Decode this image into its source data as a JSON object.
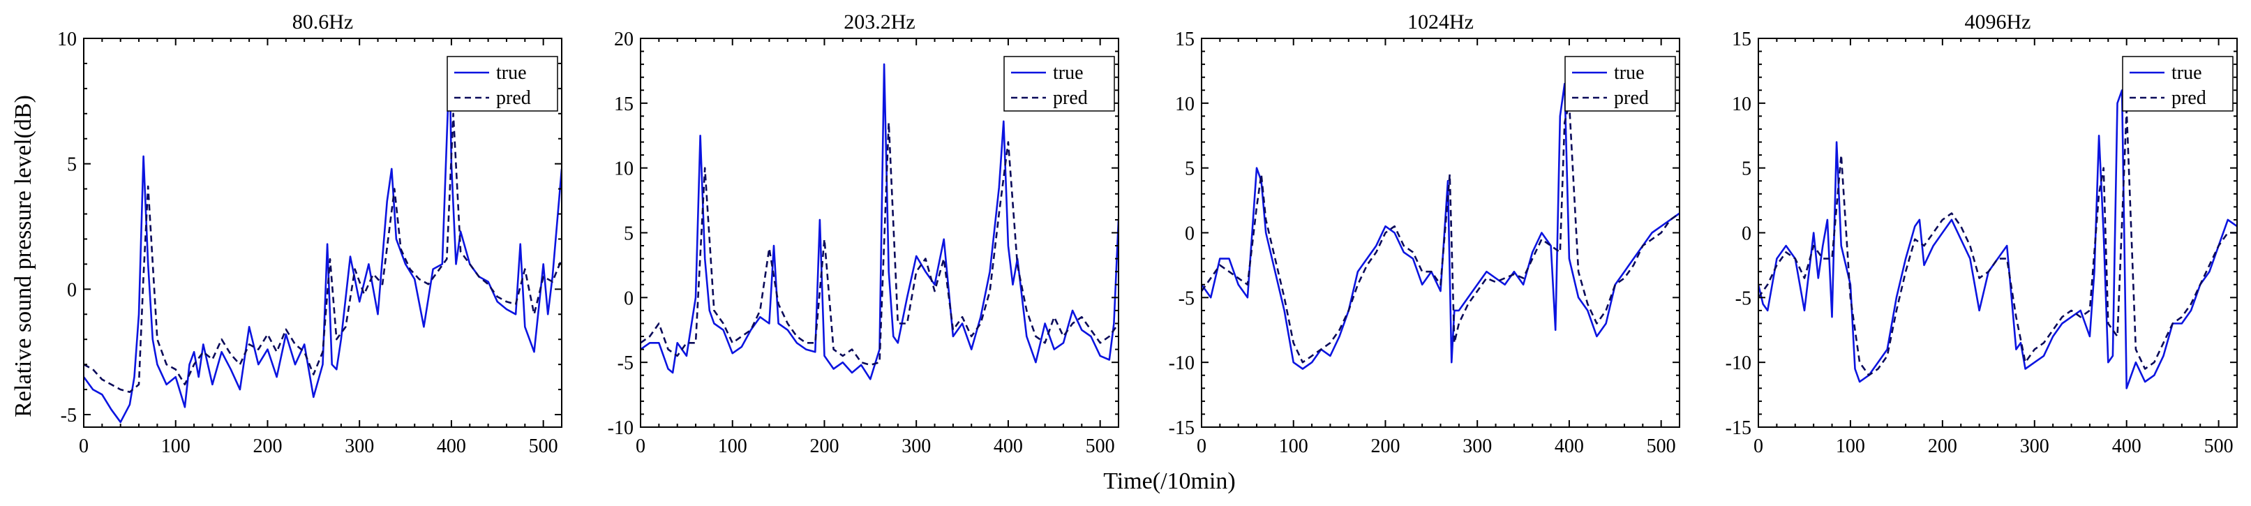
{
  "colors": {
    "true": "#0b14e0",
    "pred": "#0a0a5a",
    "frame": "#000000"
  },
  "shared": {
    "xlabel": "Time(/10min)",
    "ylabel": "Relative sound pressure level(dB)",
    "legend": [
      "true",
      "pred"
    ],
    "xlim": [
      0,
      520
    ],
    "xticks": [
      0,
      100,
      200,
      300,
      400,
      500
    ]
  },
  "chart_data": [
    {
      "type": "line",
      "title": "80.6Hz",
      "xlim": [
        0,
        520
      ],
      "ylim": [
        -5.5,
        10
      ],
      "yticks": [
        -5,
        0,
        5,
        10
      ],
      "legend_position": "top-right",
      "series": [
        {
          "name": "true",
          "x": [
            0,
            10,
            20,
            30,
            40,
            50,
            55,
            60,
            65,
            70,
            75,
            80,
            90,
            100,
            110,
            115,
            120,
            125,
            130,
            140,
            150,
            160,
            170,
            180,
            190,
            200,
            210,
            220,
            230,
            240,
            250,
            260,
            265,
            270,
            275,
            280,
            290,
            300,
            310,
            320,
            330,
            335,
            340,
            350,
            360,
            370,
            380,
            390,
            395,
            398,
            400,
            405,
            410,
            420,
            430,
            440,
            450,
            460,
            470,
            475,
            480,
            490,
            500,
            505,
            510,
            520
          ],
          "y": [
            -3.5,
            -4.0,
            -4.2,
            -4.8,
            -5.3,
            -4.6,
            -3.5,
            -1.0,
            5.3,
            1.0,
            -2.0,
            -3.0,
            -3.8,
            -3.5,
            -4.7,
            -3.0,
            -2.5,
            -3.5,
            -2.2,
            -3.8,
            -2.5,
            -3.2,
            -4.0,
            -1.5,
            -3.0,
            -2.4,
            -3.5,
            -1.8,
            -3.0,
            -2.2,
            -4.3,
            -3.0,
            1.8,
            -3.0,
            -3.2,
            -2.0,
            1.3,
            -0.5,
            1.0,
            -1.0,
            3.5,
            4.8,
            2.0,
            1.0,
            0.4,
            -1.5,
            0.8,
            1.0,
            6.0,
            9.1,
            5.0,
            1.0,
            2.3,
            1.0,
            0.5,
            0.3,
            -0.5,
            -0.8,
            -1.0,
            1.8,
            -1.5,
            -2.5,
            1.0,
            -1.0,
            0.5,
            4.8
          ]
        },
        {
          "name": "pred",
          "x": [
            0,
            10,
            20,
            30,
            40,
            50,
            60,
            65,
            70,
            80,
            90,
            100,
            110,
            120,
            130,
            140,
            150,
            160,
            170,
            180,
            190,
            200,
            210,
            220,
            230,
            240,
            250,
            260,
            268,
            275,
            285,
            295,
            305,
            315,
            325,
            338,
            345,
            355,
            365,
            375,
            385,
            395,
            402,
            410,
            420,
            430,
            440,
            450,
            460,
            470,
            480,
            490,
            500,
            510,
            520
          ],
          "y": [
            -3.0,
            -3.2,
            -3.6,
            -3.8,
            -4.0,
            -4.1,
            -3.8,
            0.5,
            4.1,
            -2.0,
            -3.0,
            -3.2,
            -3.8,
            -3.0,
            -2.5,
            -2.8,
            -2.0,
            -2.6,
            -3.0,
            -2.2,
            -2.4,
            -1.8,
            -2.5,
            -1.6,
            -2.2,
            -2.5,
            -3.4,
            -2.5,
            1.2,
            -2.0,
            -1.5,
            0.8,
            -0.2,
            0.6,
            0.2,
            4.0,
            1.6,
            0.8,
            0.4,
            0.2,
            0.7,
            1.2,
            7.0,
            1.5,
            1.0,
            0.5,
            0.2,
            -0.3,
            -0.5,
            -0.6,
            0.8,
            -1.0,
            0.5,
            0.3,
            1.2
          ]
        }
      ]
    },
    {
      "type": "line",
      "title": "203.2Hz",
      "xlim": [
        0,
        520
      ],
      "ylim": [
        -10,
        20
      ],
      "yticks": [
        -10,
        -5,
        0,
        5,
        10,
        15,
        20
      ],
      "legend_position": "top-right",
      "series": [
        {
          "name": "true",
          "x": [
            0,
            10,
            20,
            30,
            35,
            40,
            50,
            60,
            65,
            70,
            75,
            80,
            90,
            100,
            110,
            120,
            130,
            140,
            145,
            150,
            160,
            170,
            180,
            190,
            195,
            200,
            210,
            220,
            230,
            240,
            250,
            260,
            265,
            270,
            275,
            280,
            290,
            300,
            310,
            320,
            330,
            340,
            350,
            360,
            370,
            380,
            390,
            395,
            400,
            405,
            410,
            420,
            430,
            440,
            450,
            460,
            470,
            480,
            490,
            500,
            510,
            515,
            520
          ],
          "y": [
            -4.0,
            -3.5,
            -3.5,
            -5.5,
            -5.8,
            -3.5,
            -4.5,
            0.0,
            12.5,
            3.0,
            -1.0,
            -2.0,
            -2.5,
            -4.3,
            -3.8,
            -2.5,
            -1.5,
            -2.0,
            4.0,
            -2.0,
            -2.5,
            -3.5,
            -4.0,
            -4.2,
            6.0,
            -4.5,
            -5.5,
            -5.0,
            -5.8,
            -5.2,
            -6.3,
            -4.0,
            18.0,
            2.0,
            -3.0,
            -3.5,
            0.0,
            3.2,
            2.0,
            1.0,
            4.5,
            -3.0,
            -2.0,
            -4.0,
            -1.5,
            2.0,
            8.5,
            13.6,
            4.0,
            1.0,
            3.0,
            -3.0,
            -5.0,
            -2.0,
            -4.0,
            -3.5,
            -1.0,
            -2.5,
            -3.0,
            -4.5,
            -4.8,
            -2.0,
            6.0
          ]
        },
        {
          "name": "pred",
          "x": [
            0,
            10,
            20,
            30,
            40,
            50,
            60,
            70,
            80,
            90,
            100,
            110,
            120,
            130,
            140,
            150,
            160,
            170,
            180,
            190,
            200,
            210,
            220,
            230,
            240,
            250,
            260,
            270,
            280,
            290,
            300,
            310,
            320,
            330,
            340,
            350,
            360,
            370,
            380,
            390,
            400,
            410,
            420,
            430,
            440,
            450,
            460,
            470,
            480,
            490,
            500,
            510,
            520
          ],
          "y": [
            -3.5,
            -3.0,
            -2.0,
            -4.0,
            -4.5,
            -3.5,
            -3.5,
            10.0,
            -1.0,
            -2.0,
            -3.5,
            -3.0,
            -2.5,
            -1.0,
            3.8,
            -0.5,
            -2.0,
            -3.0,
            -3.5,
            -3.5,
            4.5,
            -4.0,
            -4.5,
            -4.0,
            -5.0,
            -5.2,
            -5.0,
            13.5,
            -2.0,
            -2.0,
            2.0,
            3.0,
            0.5,
            3.0,
            -2.5,
            -1.5,
            -3.0,
            -2.0,
            0.5,
            6.5,
            12.0,
            2.5,
            -1.0,
            -3.0,
            -3.5,
            -1.5,
            -3.0,
            -2.0,
            -1.5,
            -2.5,
            -3.5,
            -3.0,
            -2.0
          ]
        }
      ]
    },
    {
      "type": "line",
      "title": "1024Hz",
      "xlim": [
        0,
        520
      ],
      "ylim": [
        -15,
        15
      ],
      "yticks": [
        -15,
        -10,
        -5,
        0,
        5,
        10,
        15
      ],
      "legend_position": "top-right",
      "series": [
        {
          "name": "true",
          "x": [
            0,
            10,
            20,
            30,
            40,
            50,
            55,
            60,
            65,
            70,
            80,
            90,
            100,
            110,
            120,
            130,
            140,
            150,
            160,
            170,
            180,
            190,
            200,
            210,
            220,
            230,
            240,
            250,
            260,
            268,
            272,
            275,
            280,
            290,
            300,
            310,
            320,
            330,
            340,
            350,
            360,
            370,
            380,
            385,
            390,
            395,
            400,
            410,
            420,
            430,
            440,
            450,
            460,
            470,
            480,
            490,
            500,
            510,
            520
          ],
          "y": [
            -4.0,
            -5.0,
            -2.0,
            -2.0,
            -4.0,
            -5.0,
            0.0,
            5.0,
            4.0,
            0.0,
            -3.0,
            -6.0,
            -10.0,
            -10.5,
            -10.0,
            -9.0,
            -9.5,
            -8.0,
            -6.0,
            -3.0,
            -2.0,
            -1.0,
            0.5,
            0.0,
            -1.5,
            -2.0,
            -4.0,
            -3.0,
            -4.5,
            4.0,
            -10.0,
            -6.0,
            -6.0,
            -5.0,
            -4.0,
            -3.0,
            -3.5,
            -4.0,
            -3.0,
            -4.0,
            -1.5,
            0.0,
            -1.0,
            -7.5,
            9.0,
            11.5,
            -2.0,
            -5.0,
            -6.0,
            -8.0,
            -7.0,
            -4.0,
            -3.0,
            -2.0,
            -1.0,
            0.0,
            0.5,
            1.0,
            1.5
          ]
        },
        {
          "name": "pred",
          "x": [
            0,
            10,
            20,
            30,
            40,
            50,
            60,
            65,
            70,
            80,
            90,
            100,
            110,
            120,
            130,
            140,
            150,
            160,
            170,
            180,
            190,
            200,
            210,
            220,
            230,
            240,
            250,
            260,
            270,
            275,
            280,
            290,
            300,
            310,
            320,
            330,
            340,
            350,
            360,
            370,
            380,
            390,
            395,
            400,
            410,
            420,
            430,
            440,
            450,
            460,
            470,
            480,
            490,
            500,
            510,
            520
          ],
          "y": [
            -4.5,
            -3.5,
            -2.5,
            -3.0,
            -3.5,
            -4.0,
            2.0,
            4.5,
            1.0,
            -2.0,
            -5.0,
            -8.5,
            -10.0,
            -9.5,
            -9.0,
            -8.5,
            -7.5,
            -6.0,
            -4.0,
            -2.5,
            -1.5,
            0.0,
            0.5,
            -1.0,
            -1.5,
            -3.0,
            -3.0,
            -4.0,
            4.5,
            -8.5,
            -7.0,
            -5.5,
            -4.5,
            -3.5,
            -3.8,
            -3.5,
            -3.2,
            -3.5,
            -2.0,
            -0.5,
            -1.0,
            -1.5,
            8.5,
            10.0,
            -3.0,
            -5.5,
            -7.0,
            -6.0,
            -4.0,
            -3.5,
            -2.5,
            -1.0,
            -0.5,
            0.0,
            1.0,
            1.5
          ]
        }
      ]
    },
    {
      "type": "line",
      "title": "4096Hz",
      "xlim": [
        0,
        520
      ],
      "ylim": [
        -15,
        15
      ],
      "yticks": [
        -15,
        -10,
        -5,
        0,
        5,
        10,
        15
      ],
      "legend_position": "top-right",
      "series": [
        {
          "name": "true",
          "x": [
            0,
            5,
            10,
            15,
            20,
            25,
            30,
            40,
            50,
            60,
            65,
            70,
            75,
            80,
            85,
            90,
            100,
            105,
            110,
            120,
            130,
            140,
            150,
            160,
            170,
            175,
            180,
            190,
            200,
            210,
            220,
            230,
            240,
            250,
            260,
            270,
            280,
            285,
            290,
            300,
            310,
            320,
            330,
            340,
            350,
            360,
            365,
            370,
            375,
            380,
            385,
            390,
            395,
            400,
            410,
            420,
            430,
            440,
            450,
            460,
            470,
            480,
            490,
            500,
            510,
            520
          ],
          "y": [
            -4.0,
            -5.5,
            -6.0,
            -4.0,
            -2.0,
            -1.5,
            -1.0,
            -2.0,
            -6.0,
            0.0,
            -3.5,
            -1.0,
            1.0,
            -6.5,
            7.0,
            -1.0,
            -4.0,
            -10.5,
            -11.5,
            -11.0,
            -10.0,
            -9.0,
            -5.0,
            -2.0,
            0.5,
            1.0,
            -2.5,
            -1.0,
            0.0,
            1.0,
            -0.5,
            -2.0,
            -6.0,
            -3.0,
            -2.0,
            -1.0,
            -9.0,
            -8.5,
            -10.5,
            -10.0,
            -9.5,
            -8.0,
            -7.0,
            -6.5,
            -6.0,
            -8.0,
            -3.0,
            7.5,
            0.0,
            -10.0,
            -9.5,
            10.0,
            11.0,
            -12.0,
            -10.0,
            -11.5,
            -11.0,
            -9.5,
            -7.0,
            -7.0,
            -6.0,
            -4.0,
            -3.0,
            -1.0,
            1.0,
            0.5
          ]
        },
        {
          "name": "pred",
          "x": [
            0,
            10,
            20,
            30,
            40,
            50,
            60,
            70,
            80,
            90,
            100,
            110,
            120,
            130,
            140,
            150,
            160,
            170,
            180,
            190,
            200,
            210,
            220,
            230,
            240,
            250,
            260,
            270,
            280,
            290,
            300,
            310,
            320,
            330,
            340,
            350,
            360,
            370,
            375,
            380,
            390,
            400,
            410,
            420,
            430,
            440,
            450,
            460,
            470,
            480,
            490,
            500,
            510,
            520
          ],
          "y": [
            -5.0,
            -4.0,
            -2.5,
            -1.5,
            -2.0,
            -3.5,
            -1.0,
            -2.0,
            -2.0,
            6.0,
            -5.0,
            -10.0,
            -11.0,
            -10.5,
            -9.5,
            -6.0,
            -3.0,
            -0.5,
            -1.0,
            0.0,
            1.0,
            1.5,
            0.5,
            -1.0,
            -3.5,
            -3.0,
            -2.0,
            -2.0,
            -6.5,
            -10.0,
            -9.0,
            -8.5,
            -7.5,
            -6.5,
            -6.0,
            -6.5,
            -6.0,
            3.0,
            5.0,
            -7.0,
            -8.0,
            9.5,
            -9.0,
            -10.5,
            -10.0,
            -8.5,
            -7.0,
            -6.5,
            -5.5,
            -4.0,
            -2.5,
            -1.0,
            0.0,
            0.0
          ]
        }
      ]
    }
  ]
}
